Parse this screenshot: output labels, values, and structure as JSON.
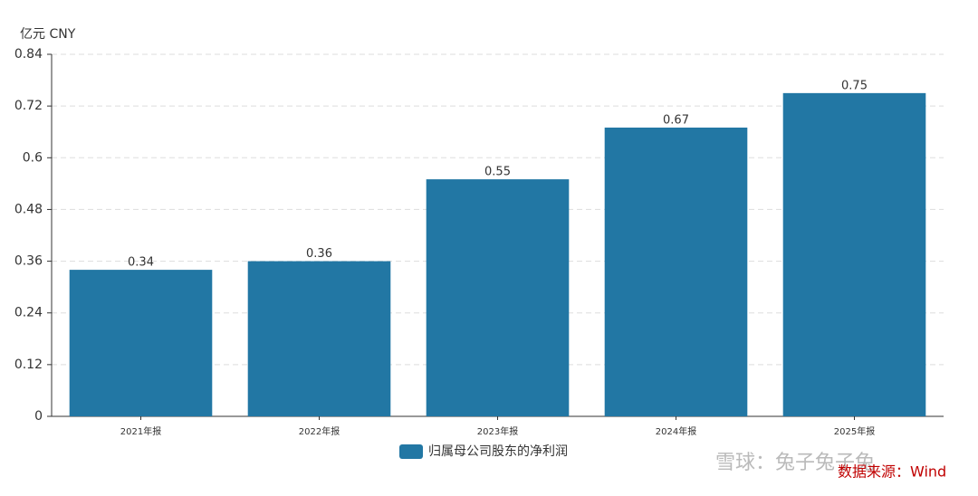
{
  "chart_data": {
    "type": "bar",
    "y_axis_label": "亿元  CNY",
    "categories": [
      "2021年报",
      "2022年报",
      "2023年报",
      "2024年报",
      "2025年报"
    ],
    "series": [
      {
        "name": "归属母公司股东的净利润",
        "color": "#2277a4",
        "values": [
          0.34,
          0.36,
          0.55,
          0.67,
          0.75
        ]
      }
    ],
    "ylim": [
      0,
      0.84
    ],
    "yticks": [
      0,
      0.12,
      0.24,
      0.36,
      0.48,
      0.6,
      0.72,
      0.84
    ],
    "grid": true,
    "watermark": "雪球：兔子兔子兔",
    "source": "数据来源：Wind"
  }
}
